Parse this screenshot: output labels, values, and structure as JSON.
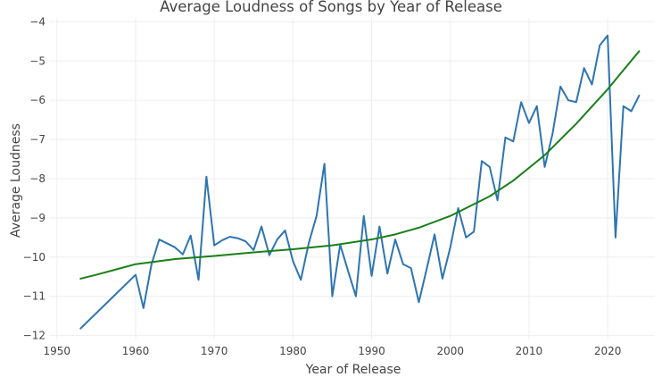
{
  "chart_data": {
    "type": "line",
    "title": "Average Loudness of Songs by Year of Release",
    "xlabel": "Year of Release",
    "ylabel": "Average Loudness",
    "xlim": [
      1949,
      2026
    ],
    "ylim": [
      -12.1,
      -3.9
    ],
    "x_ticks": [
      1950,
      1960,
      1970,
      1980,
      1990,
      2000,
      2010,
      2020
    ],
    "x_tick_labels": [
      "1950",
      "1960",
      "1970",
      "1980",
      "1990",
      "2000",
      "2010",
      "2020"
    ],
    "y_ticks": [
      -12,
      -11,
      -10,
      -9,
      -8,
      -7,
      -6,
      -5,
      -4
    ],
    "y_tick_labels": [
      "−12",
      "−11",
      "−10",
      "−9",
      "−8",
      "−7",
      "−6",
      "−5",
      "−4"
    ],
    "grid": true,
    "legend": "none",
    "series": [
      {
        "color": "#2e75b0",
        "x": [
          1953,
          1960,
          1961,
          1962,
          1963,
          1964,
          1965,
          1966,
          1967,
          1968,
          1969,
          1970,
          1971,
          1972,
          1973,
          1974,
          1975,
          1976,
          1977,
          1978,
          1979,
          1980,
          1981,
          1982,
          1983,
          1984,
          1985,
          1986,
          1987,
          1988,
          1989,
          1990,
          1991,
          1992,
          1993,
          1994,
          1995,
          1996,
          1997,
          1998,
          1999,
          2000,
          2001,
          2002,
          2003,
          2004,
          2005,
          2006,
          2007,
          2008,
          2009,
          2010,
          2011,
          2012,
          2013,
          2014,
          2015,
          2016,
          2017,
          2018,
          2019,
          2020,
          2021,
          2022,
          2023,
          2024
        ],
        "y": [
          -11.82,
          -10.45,
          -11.3,
          -10.2,
          -9.55,
          -9.65,
          -9.75,
          -9.93,
          -9.45,
          -10.58,
          -7.95,
          -9.7,
          -9.57,
          -9.48,
          -9.52,
          -9.6,
          -9.82,
          -9.22,
          -9.95,
          -9.55,
          -9.32,
          -10.1,
          -10.58,
          -9.65,
          -8.95,
          -7.62,
          -11.0,
          -9.68,
          -10.35,
          -11.0,
          -8.95,
          -10.48,
          -9.22,
          -10.42,
          -9.55,
          -10.18,
          -10.28,
          -11.15,
          -10.3,
          -9.42,
          -10.55,
          -9.75,
          -8.75,
          -9.5,
          -9.35,
          -7.55,
          -7.7,
          -8.55,
          -6.95,
          -7.05,
          -6.05,
          -6.58,
          -6.15,
          -7.7,
          -6.85,
          -5.65,
          -6.0,
          -6.05,
          -5.18,
          -5.6,
          -4.6,
          -4.35,
          -9.5,
          -6.15,
          -6.28,
          -5.88
        ]
      },
      {
        "color": "#1a7f1a",
        "x": [
          1953,
          1955,
          1960,
          1965,
          1970,
          1975,
          1980,
          1985,
          1990,
          1993,
          1996,
          2000,
          2005,
          2008,
          2012,
          2016,
          2020,
          2024
        ],
        "y": [
          -10.55,
          -10.45,
          -10.18,
          -10.05,
          -9.97,
          -9.88,
          -9.8,
          -9.7,
          -9.55,
          -9.42,
          -9.25,
          -8.95,
          -8.45,
          -8.05,
          -7.4,
          -6.6,
          -5.72,
          -4.75
        ]
      }
    ]
  }
}
